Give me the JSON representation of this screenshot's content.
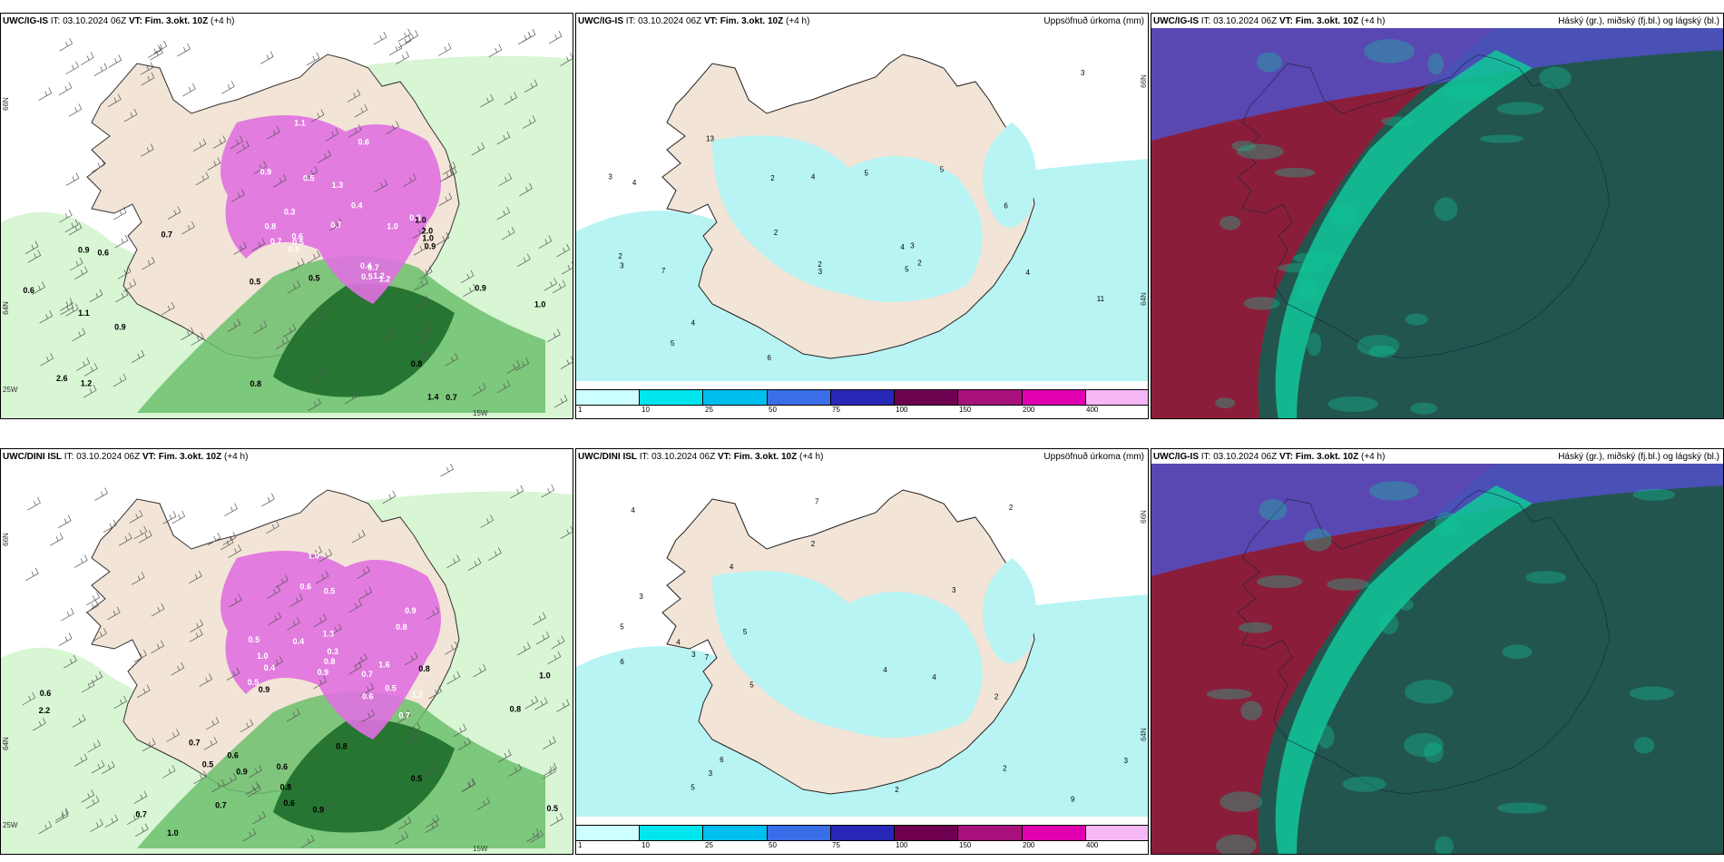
{
  "panels": [
    {
      "id": "p1",
      "model": "UWC/IG-IS",
      "it_label": "IT:",
      "it": "03.10.2024 06Z",
      "vt_label": "VT:",
      "vt": "Fim. 3.okt. 10Z",
      "lead": "(+4 h)",
      "right": "",
      "lat_top": "66N",
      "lat_bot": "64N",
      "lon_left": "25W",
      "lon_right": "15W"
    },
    {
      "id": "p2",
      "model": "UWC/IG-IS",
      "it_label": "IT:",
      "it": "03.10.2024 06Z",
      "vt_label": "VT:",
      "vt": "Fim. 3.okt. 10Z",
      "lead": "(+4 h)",
      "right": "Uppsöfnuð úrkoma (mm)",
      "lat_top": "66N",
      "lat_bot": "64N"
    },
    {
      "id": "p3",
      "model": "UWC/IG-IS",
      "it_label": "IT:",
      "it": "03.10.2024 06Z",
      "vt_label": "VT:",
      "vt": "Fim. 3.okt. 10Z",
      "lead": "(+4 h)",
      "right": "Háský (gr.), miðský (fj.bl.) og lágský (bl.)"
    },
    {
      "id": "p4",
      "model": "UWC/DINI ISL",
      "it_label": "IT:",
      "it": "03.10.2024 06Z",
      "vt_label": "VT:",
      "vt": "Fim. 3.okt. 10Z",
      "lead": "(+4 h)",
      "right": "",
      "lat_top": "66N",
      "lat_bot": "64N",
      "lon_left": "25W",
      "lon_right": "15W"
    },
    {
      "id": "p5",
      "model": "UWC/DINI ISL",
      "it_label": "IT:",
      "it": "03.10.2024 06Z",
      "vt_label": "VT:",
      "vt": "Fim. 3.okt. 10Z",
      "lead": "(+4 h)",
      "right": "Uppsöfnuð úrkoma (mm)",
      "lat_top": "66N",
      "lat_bot": "64N"
    },
    {
      "id": "p6",
      "model": "UWC/IG-IS",
      "it_label": "IT:",
      "it": "03.10.2024 06Z",
      "vt_label": "VT:",
      "vt": "Fim. 3.okt. 10Z",
      "lead": "(+4 h)",
      "right": "Háský (gr.), miðský (fj.bl.) og lágský (bl.)"
    }
  ],
  "legend": {
    "labels": [
      "1",
      "10",
      "25",
      "50",
      "75",
      "100",
      "150",
      "200",
      "400"
    ],
    "colors": [
      "#ccffff",
      "#00e5ee",
      "#00bfee",
      "#3a6ee8",
      "#2828b8",
      "#6e0050",
      "#a8107c",
      "#e000b0",
      "#f5b8f5"
    ]
  },
  "colors": {
    "land": "#f2e4d6",
    "rain_light": "#d8f5d4",
    "rain_mid": "#6cc06c",
    "rain_dark": "#1e6b2a",
    "snow": "#e070e0",
    "precip": "#b8f4f4",
    "cloud_dark": "#23554f",
    "cloud_red": "#8a1e3a",
    "cloud_teal": "#10c89a",
    "cloud_blue": "#5050c8"
  },
  "snow_values_top": [
    "0.7",
    "0.6",
    "0.8",
    "0.5",
    "1.2",
    "0.9",
    "0.4",
    "1.0",
    "0.7",
    "1.3",
    "0.3",
    "0.5",
    "0.6",
    "1.1",
    "0.8",
    "0.9",
    "0.5",
    "0.4",
    "1.2",
    "0.7"
  ],
  "rain_values_top": [
    "0.6",
    "0.9",
    "1.0",
    "0.8",
    "0.7",
    "1.4",
    "2.0",
    "1.0",
    "0.9",
    "0.5",
    "0.6",
    "1.2",
    "0.8",
    "0.7",
    "1.1",
    "0.9",
    "2.6",
    "0.5",
    "0.9",
    "1.0"
  ],
  "snow_values_bot": [
    "0.5",
    "0.6",
    "0.5",
    "0.4",
    "0.8",
    "1.0",
    "0.9",
    "0.7",
    "0.5",
    "1.6",
    "0.6",
    "0.4",
    "0.7",
    "1.0",
    "1.2",
    "0.5",
    "0.3",
    "0.9",
    "1.3",
    "0.8"
  ],
  "rain_values_bot": [
    "0.7",
    "0.5",
    "0.8",
    "0.6",
    "0.9",
    "1.0",
    "0.8",
    "0.6",
    "0.5",
    "0.9",
    "0.7",
    "2.2",
    "0.8",
    "1.0",
    "0.6",
    "0.8",
    "0.9",
    "0.5",
    "0.6",
    "0.7"
  ],
  "precip_values_top": [
    "2",
    "4",
    "3",
    "5",
    "2",
    "4",
    "6",
    "3",
    "2",
    "5",
    "4",
    "3",
    "7",
    "2",
    "4",
    "11",
    "5",
    "3",
    "6",
    "13",
    "2",
    "4",
    "3",
    "5"
  ],
  "precip_values_bot": [
    "3",
    "2",
    "5",
    "4",
    "3",
    "6",
    "2",
    "4",
    "5",
    "3",
    "7",
    "2",
    "4",
    "9",
    "5",
    "3",
    "6",
    "2",
    "4",
    "5",
    "7",
    "3",
    "4",
    "2"
  ]
}
